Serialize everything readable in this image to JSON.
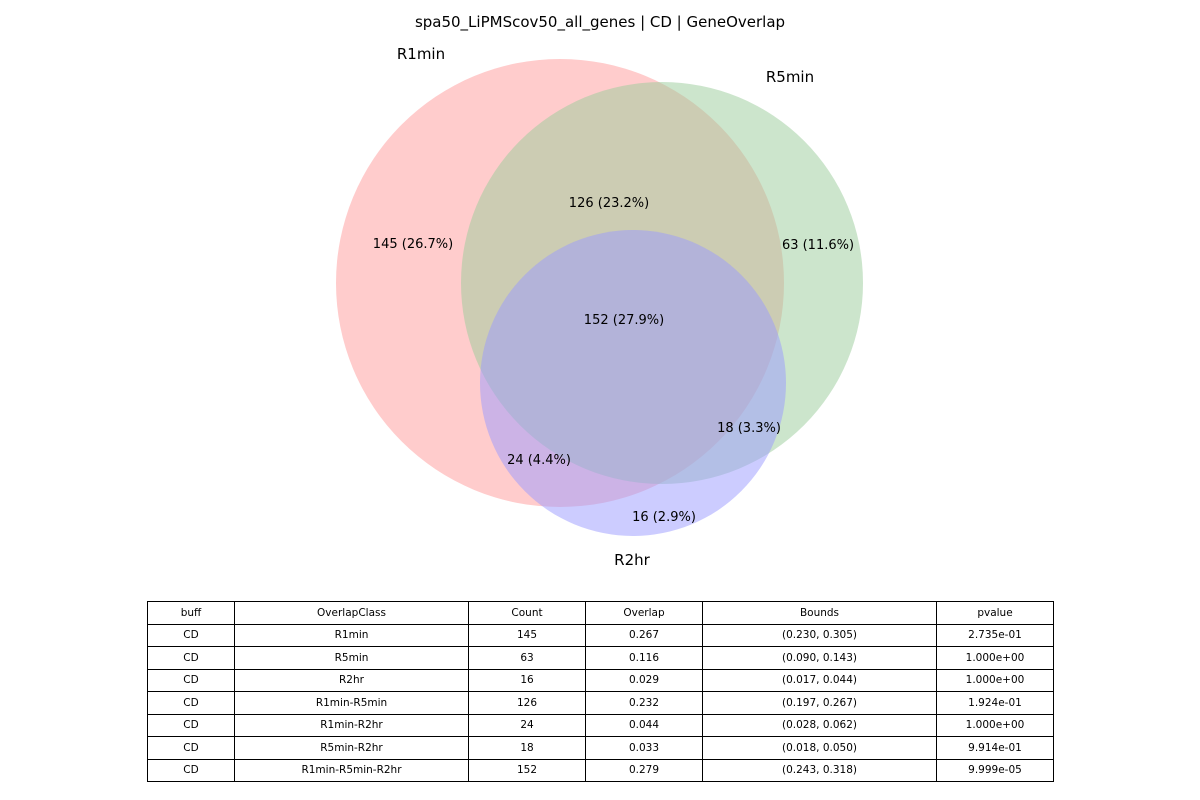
{
  "title": "spa50_LiPMScov50_all_genes | CD | GeneOverlap",
  "sets": [
    {
      "name": "R1min",
      "color": "#ff9999"
    },
    {
      "name": "R5min",
      "color": "#99cc99"
    },
    {
      "name": "R2hr",
      "color": "#9999ff"
    }
  ],
  "regions": {
    "r1": "145 (26.7%)",
    "r5": "63 (11.6%)",
    "r2": "16 (2.9%)",
    "r15": "126 (23.2%)",
    "r12": "24 (4.4%)",
    "r52": "18 (3.3%)",
    "r152": "152 (27.9%)"
  },
  "table": {
    "columns": [
      "buff",
      "OverlapClass",
      "Count",
      "Overlap",
      "Bounds",
      "pvalue"
    ],
    "rows": [
      [
        "CD",
        "R1min",
        "145",
        "0.267",
        "(0.230, 0.305)",
        "2.735e-01"
      ],
      [
        "CD",
        "R5min",
        "63",
        "0.116",
        "(0.090, 0.143)",
        "1.000e+00"
      ],
      [
        "CD",
        "R2hr",
        "16",
        "0.029",
        "(0.017, 0.044)",
        "1.000e+00"
      ],
      [
        "CD",
        "R1min-R5min",
        "126",
        "0.232",
        "(0.197, 0.267)",
        "1.924e-01"
      ],
      [
        "CD",
        "R1min-R2hr",
        "24",
        "0.044",
        "(0.028, 0.062)",
        "1.000e+00"
      ],
      [
        "CD",
        "R5min-R2hr",
        "18",
        "0.033",
        "(0.018, 0.050)",
        "9.914e-01"
      ],
      [
        "CD",
        "R1min-R5min-R2hr",
        "152",
        "0.279",
        "(0.243, 0.318)",
        "9.999e-05"
      ]
    ]
  }
}
